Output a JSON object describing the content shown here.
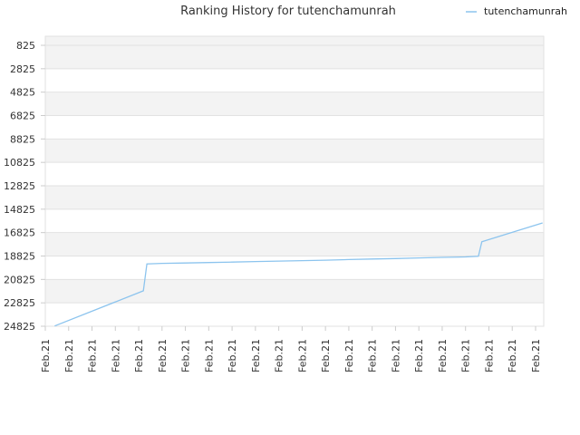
{
  "chart_data": {
    "type": "line",
    "title": "Ranking History for tutenchamunrah",
    "xlabel": "",
    "ylabel": "",
    "y_reversed": true,
    "ylim": [
      825,
      24825
    ],
    "y_ticks": [
      825,
      2825,
      4825,
      6825,
      8825,
      10825,
      12825,
      14825,
      16825,
      18825,
      20825,
      22825,
      24825
    ],
    "x_tick_labels": [
      "Feb.21",
      "Feb.21",
      "Feb.21",
      "Feb.21",
      "Feb.21",
      "Feb.21",
      "Feb.21",
      "Feb.21",
      "Feb.21",
      "Feb.21",
      "Feb.21",
      "Feb.21",
      "Feb.21",
      "Feb.21",
      "Feb.21",
      "Feb.21",
      "Feb.21",
      "Feb.21",
      "Feb.21",
      "Feb.21",
      "Feb.21",
      "Feb.21"
    ],
    "grid": true,
    "legend_position": "top-right",
    "colors": {
      "line": "#8cc4ee",
      "band": "#f3f3f3",
      "grid": "#e2e2e2"
    },
    "series": [
      {
        "name": "tutenchamunrah",
        "x": [
          0.4,
          4.2,
          4.35,
          5.0,
          6.0,
          7.0,
          8.0,
          9.0,
          10.0,
          11.0,
          12.0,
          13.0,
          14.0,
          15.0,
          16.0,
          17.0,
          18.0,
          18.55,
          18.7,
          21.3
        ],
        "values": [
          24800,
          21800,
          19500,
          19450,
          19420,
          19380,
          19340,
          19300,
          19260,
          19220,
          19180,
          19130,
          19080,
          19040,
          18990,
          18940,
          18900,
          18850,
          17600,
          16000
        ]
      }
    ]
  }
}
